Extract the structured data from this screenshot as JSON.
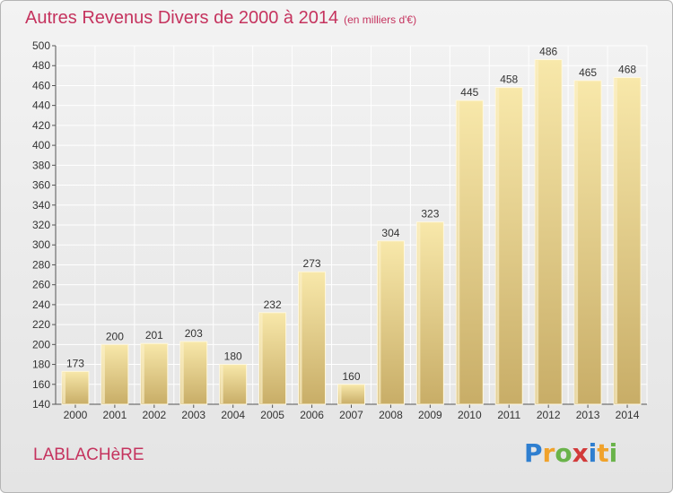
{
  "header": {
    "title": "Autres Revenus Divers de 2000 à 2014",
    "subtitle": "(en milliers d'€)"
  },
  "footer": {
    "city": "LABLACHèRE",
    "logo_text": "Proxiti",
    "logo_letters": [
      "P",
      "r",
      "o",
      "x",
      "i",
      "t",
      "i"
    ]
  },
  "colors": {
    "title": "#c5335e",
    "bar_light": "#f6e3a5",
    "bar_dark": "#c9b06a",
    "grid": "#ffffff"
  },
  "chart_data": {
    "type": "bar",
    "title": "Autres Revenus Divers de 2000 à 2014",
    "subtitle": "(en milliers d'€)",
    "xlabel": "",
    "ylabel": "",
    "ylim": [
      140,
      500
    ],
    "yticks": [
      140,
      160,
      180,
      200,
      220,
      240,
      260,
      280,
      300,
      320,
      340,
      360,
      380,
      400,
      420,
      440,
      460,
      480,
      500
    ],
    "categories": [
      "2000",
      "2001",
      "2002",
      "2003",
      "2004",
      "2005",
      "2006",
      "2007",
      "2008",
      "2009",
      "2010",
      "2011",
      "2012",
      "2013",
      "2014"
    ],
    "values": [
      173,
      200,
      201,
      203,
      180,
      232,
      273,
      160,
      304,
      323,
      445,
      458,
      486,
      465,
      468
    ],
    "grid": true,
    "legend": "none"
  }
}
